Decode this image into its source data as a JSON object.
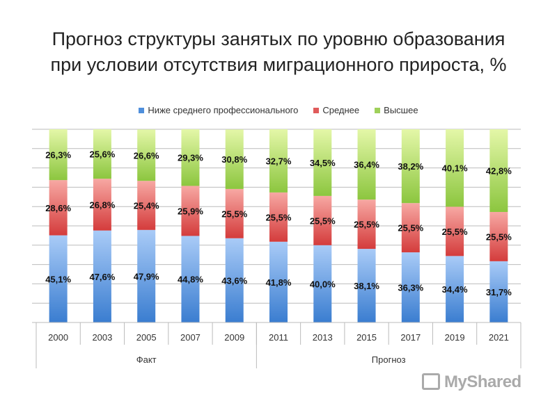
{
  "chart_data": {
    "type": "bar",
    "stacked": true,
    "title": "Прогноз структуры занятых по уровню образования при условии отсутствия миграционного прироста, %",
    "title_lines": [
      "Прогноз структуры занятых по уровню образования",
      "при условии отсутствия миграционного прироста, %"
    ],
    "categories": [
      "2000",
      "2003",
      "2005",
      "2007",
      "2009",
      "2011",
      "2013",
      "2015",
      "2017",
      "2019",
      "2021"
    ],
    "groups": [
      {
        "label": "Факт",
        "count": 5
      },
      {
        "label": "Прогноз",
        "count": 6
      }
    ],
    "series": [
      {
        "name": "Ниже среднего профессионального",
        "color": "#4f8fdc",
        "values": [
          45.1,
          47.6,
          47.9,
          44.8,
          43.6,
          41.8,
          40.0,
          38.1,
          36.3,
          34.4,
          31.7
        ],
        "labels": [
          "45,1%",
          "47,6%",
          "47,9%",
          "44,8%",
          "43,6%",
          "41,8%",
          "40,0%",
          "38,1%",
          "36,3%",
          "34,4%",
          "31,7%"
        ]
      },
      {
        "name": "Среднее",
        "color": "#e05b5b",
        "values": [
          28.6,
          26.8,
          25.4,
          25.9,
          25.5,
          25.5,
          25.5,
          25.5,
          25.5,
          25.5,
          25.5
        ],
        "labels": [
          "28,6%",
          "26,8%",
          "25,4%",
          "25,9%",
          "25,5%",
          "25,5%",
          "25,5%",
          "25,5%",
          "25,5%",
          "25,5%",
          "25,5%"
        ]
      },
      {
        "name": "Высшее",
        "color": "#9fd05a",
        "values": [
          26.3,
          25.6,
          26.6,
          29.3,
          30.8,
          32.7,
          34.5,
          36.4,
          38.2,
          40.1,
          42.8
        ],
        "labels": [
          "26,3%",
          "25,6%",
          "26,6%",
          "29,3%",
          "30,8%",
          "32,7%",
          "34,5%",
          "36,4%",
          "38,2%",
          "40,1%",
          "42,8%"
        ]
      }
    ],
    "ylim": [
      0,
      100
    ],
    "grid": true,
    "legend": "top"
  },
  "logo": "MyShared"
}
